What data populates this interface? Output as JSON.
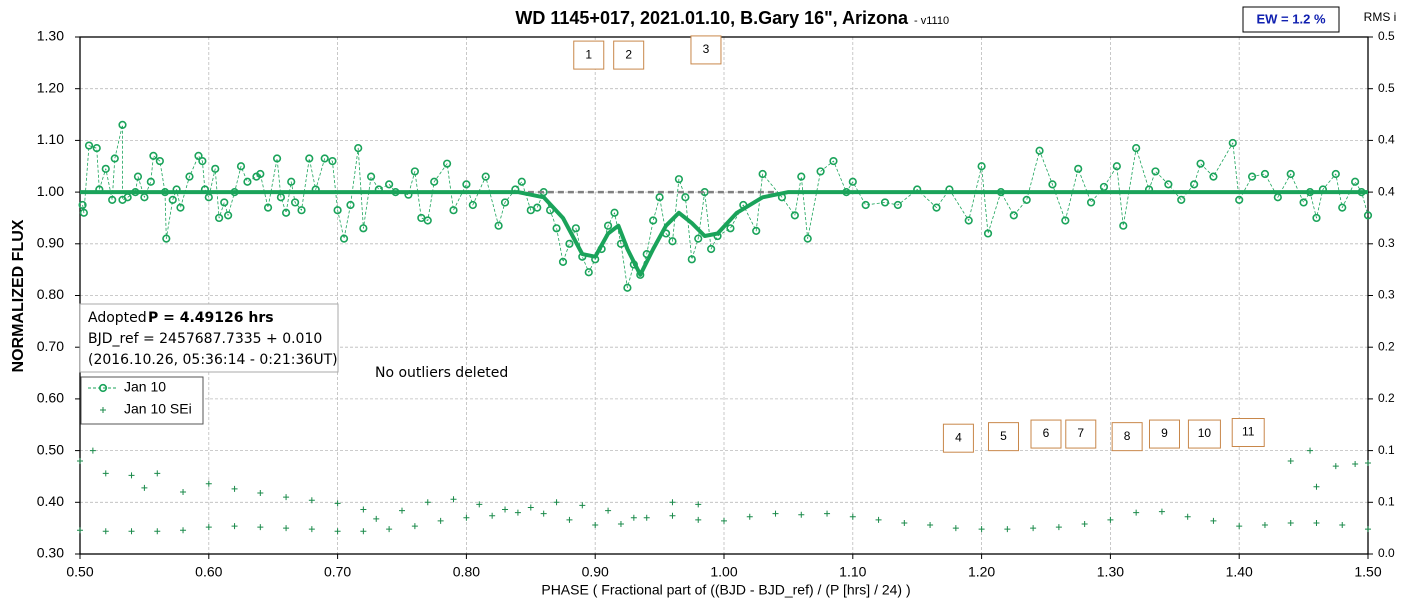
{
  "chart_data": {
    "type": "scatter",
    "title": "WD 1145+017, 2021.01.10, B.Gary 16\", Arizona",
    "subtitle": "- v1110",
    "x_label": "PHASE ( Fractional part of ((BJD - BJD_ref) / (P [hrs] / 24) )",
    "y_label": "NORMALIZED FLUX",
    "y2_label": "RMS i",
    "ew_label": "EW = 1.2 %",
    "note": "No outliers deleted",
    "info": {
      "adopted": "Adopted",
      "period": "P = 4.49126 hrs",
      "bjd": "BJD_ref = 2457687.7335 + 0.010",
      "date": "(2016.10.26, 05:36:14 - 0:21:36UT)"
    },
    "xlim": [
      0.5,
      1.5
    ],
    "xticks": [
      {
        "value": 0.5,
        "label": "0.50"
      },
      {
        "value": 0.6,
        "label": "0.60"
      },
      {
        "value": 0.7,
        "label": "0.70"
      },
      {
        "value": 0.8,
        "label": "0.80"
      },
      {
        "value": 0.9,
        "label": "0.90"
      },
      {
        "value": 1.0,
        "label": "1.00"
      },
      {
        "value": 1.1,
        "label": "1.10"
      },
      {
        "value": 1.2,
        "label": "1.20"
      },
      {
        "value": 1.3,
        "label": "1.30"
      },
      {
        "value": 1.4,
        "label": "1.40"
      },
      {
        "value": 1.5,
        "label": "1.50"
      }
    ],
    "ylim": [
      0.3,
      1.3
    ],
    "yticks": [
      {
        "value": 0.3,
        "label": "0.30"
      },
      {
        "value": 0.4,
        "label": "0.40"
      },
      {
        "value": 0.5,
        "label": "0.50"
      },
      {
        "value": 0.6,
        "label": "0.60"
      },
      {
        "value": 0.7,
        "label": "0.70"
      },
      {
        "value": 0.8,
        "label": "0.80"
      },
      {
        "value": 0.9,
        "label": "0.90"
      },
      {
        "value": 1.0,
        "label": "1.00"
      },
      {
        "value": 1.1,
        "label": "1.10"
      },
      {
        "value": 1.2,
        "label": "1.20"
      },
      {
        "value": 1.3,
        "label": "1.30"
      }
    ],
    "y2lim": [
      0,
      0.5
    ],
    "y2ticks": [
      {
        "value": 0,
        "label": "0.0"
      },
      {
        "value": 0.05,
        "label": "0.1"
      },
      0.1,
      {
        "value": 0.15,
        "label": "0.2"
      },
      0.2,
      {
        "value": 0.25,
        "label": "0.3"
      },
      0.3,
      {
        "value": 0.35,
        "label": "0.4"
      },
      0.4,
      {
        "value": 0.45,
        "label": "0.5"
      },
      0.5
    ],
    "grid": true,
    "legend": "lower-left",
    "series": [
      {
        "name": "Jan 10",
        "color": "#1aa35a",
        "marker": "circle",
        "line": "thin-dashed",
        "x": [
          0.502,
          0.503,
          0.507,
          0.513,
          0.515,
          0.52,
          0.525,
          0.527,
          0.533,
          0.533,
          0.537,
          0.543,
          0.545,
          0.55,
          0.555,
          0.557,
          0.562,
          0.566,
          0.567,
          0.572,
          0.575,
          0.578,
          0.585,
          0.592,
          0.595,
          0.597,
          0.6,
          0.605,
          0.608,
          0.612,
          0.615,
          0.62,
          0.625,
          0.63,
          0.637,
          0.64,
          0.646,
          0.653,
          0.656,
          0.66,
          0.664,
          0.667,
          0.672,
          0.678,
          0.683,
          0.69,
          0.696,
          0.7,
          0.705,
          0.71,
          0.716,
          0.72,
          0.726,
          0.732,
          0.74,
          0.745,
          0.755,
          0.76,
          0.765,
          0.77,
          0.775,
          0.785,
          0.79,
          0.8,
          0.805,
          0.815,
          0.825,
          0.83,
          0.838,
          0.843,
          0.85,
          0.855,
          0.86,
          0.865,
          0.87,
          0.875,
          0.88,
          0.885,
          0.89,
          0.895,
          0.9,
          0.905,
          0.91,
          0.915,
          0.92,
          0.925,
          0.93,
          0.935,
          0.94,
          0.945,
          0.95,
          0.955,
          0.96,
          0.965,
          0.97,
          0.975,
          0.98,
          0.985,
          0.99,
          0.995,
          1.005,
          1.015,
          1.025,
          1.03,
          1.045,
          1.055,
          1.06,
          1.065,
          1.075,
          1.085,
          1.095,
          1.1,
          1.11,
          1.125,
          1.135,
          1.15,
          1.165,
          1.175,
          1.19,
          1.2,
          1.205,
          1.215,
          1.225,
          1.235,
          1.245,
          1.255,
          1.265,
          1.275,
          1.285,
          1.295,
          1.305,
          1.31,
          1.32,
          1.33,
          1.335,
          1.345,
          1.355,
          1.365,
          1.37,
          1.38,
          1.395,
          1.4,
          1.41,
          1.42,
          1.43,
          1.44,
          1.45,
          1.455,
          1.46,
          1.465,
          1.475,
          1.48,
          1.49,
          1.495,
          1.5
        ],
        "values": [
          0.975,
          0.96,
          1.09,
          1.085,
          1.005,
          1.045,
          0.985,
          1.065,
          1.13,
          0.985,
          0.99,
          1.0,
          1.03,
          0.99,
          1.02,
          1.07,
          1.06,
          1.0,
          0.91,
          0.985,
          1.005,
          0.97,
          1.03,
          1.07,
          1.06,
          1.005,
          0.99,
          1.045,
          0.95,
          0.98,
          0.955,
          1.0,
          1.05,
          1.02,
          1.03,
          1.035,
          0.97,
          1.065,
          0.99,
          0.96,
          1.02,
          0.98,
          0.965,
          1.065,
          1.005,
          1.065,
          1.06,
          0.965,
          0.91,
          0.975,
          1.085,
          0.93,
          1.03,
          1.005,
          1.015,
          1.0,
          0.995,
          1.04,
          0.95,
          0.945,
          1.02,
          1.055,
          0.965,
          1.015,
          0.975,
          1.03,
          0.935,
          0.98,
          1.005,
          1.02,
          0.965,
          0.97,
          1.0,
          0.965,
          0.93,
          0.865,
          0.9,
          0.93,
          0.875,
          0.845,
          0.87,
          0.89,
          0.935,
          0.96,
          0.9,
          0.815,
          0.86,
          0.84,
          0.88,
          0.945,
          0.99,
          0.92,
          0.905,
          1.025,
          0.99,
          0.87,
          0.91,
          1.0,
          0.89,
          0.915,
          0.93,
          0.975,
          0.925,
          1.035,
          0.99,
          0.955,
          1.03,
          0.91,
          1.04,
          1.06,
          1.0,
          1.02,
          0.975,
          0.98,
          0.975,
          1.005,
          0.97,
          1.005,
          0.945,
          1.05,
          0.92,
          1.0,
          0.955,
          0.985,
          1.08,
          1.015,
          0.945,
          1.045,
          0.98,
          1.01,
          1.05,
          0.935,
          1.085,
          1.005,
          1.04,
          1.015,
          0.985,
          1.015,
          1.055,
          1.03,
          1.095,
          0.985,
          1.03,
          1.035,
          0.99,
          1.035,
          0.98,
          1.0,
          0.95,
          1.005,
          1.035,
          0.97,
          1.02,
          1.0,
          0.955
        ]
      },
      {
        "name": "Jan 10 SEi",
        "color": "#1a8a4a",
        "marker": "plus",
        "line": "none",
        "axis": "y2",
        "x": [
          0.5,
          0.52,
          0.54,
          0.56,
          0.58,
          0.6,
          0.62,
          0.64,
          0.66,
          0.68,
          0.7,
          0.72,
          0.74,
          0.76,
          0.78,
          0.8,
          0.82,
          0.84,
          0.86,
          0.88,
          0.9,
          0.92,
          0.94,
          0.96,
          0.98,
          1.0,
          1.02,
          1.04,
          1.06,
          1.08,
          1.1,
          1.12,
          1.14,
          1.16,
          1.18,
          1.2,
          1.22,
          1.24,
          1.26,
          1.28,
          1.3,
          1.32,
          1.34,
          1.36,
          1.38,
          1.4,
          1.42,
          1.44,
          1.46,
          1.48,
          1.5,
          0.5,
          0.51,
          0.52,
          0.54,
          0.55,
          0.56,
          0.58,
          0.6,
          0.62,
          0.64,
          0.66,
          0.68,
          0.7,
          0.72,
          0.73,
          0.75,
          0.77,
          0.79,
          0.81,
          0.83,
          0.85,
          0.87,
          0.89,
          0.91,
          0.93,
          0.96,
          0.98,
          1.44,
          1.455,
          1.46,
          1.475,
          1.49,
          1.5
        ],
        "values": [
          0.023,
          0.022,
          0.022,
          0.022,
          0.023,
          0.026,
          0.027,
          0.026,
          0.025,
          0.024,
          0.022,
          0.022,
          0.024,
          0.027,
          0.032,
          0.035,
          0.037,
          0.04,
          0.039,
          0.033,
          0.028,
          0.029,
          0.035,
          0.037,
          0.033,
          0.032,
          0.036,
          0.039,
          0.038,
          0.039,
          0.036,
          0.033,
          0.03,
          0.028,
          0.025,
          0.024,
          0.024,
          0.025,
          0.026,
          0.029,
          0.033,
          0.04,
          0.041,
          0.036,
          0.032,
          0.027,
          0.028,
          0.03,
          0.03,
          0.028,
          0.024,
          0.09,
          0.1,
          0.078,
          0.076,
          0.064,
          0.078,
          0.06,
          0.068,
          0.063,
          0.059,
          0.055,
          0.052,
          0.049,
          0.043,
          0.034,
          0.042,
          0.05,
          0.053,
          0.048,
          0.043,
          0.045,
          0.05,
          0.047,
          0.042,
          0.035,
          0.05,
          0.048,
          0.09,
          0.1,
          0.065,
          0.085,
          0.087,
          0.088
        ]
      },
      {
        "color": "#1aa35a",
        "marker": "none",
        "line": "thick",
        "x": [
          0.5,
          0.84,
          0.86,
          0.875,
          0.89,
          0.9,
          0.91,
          0.918,
          0.925,
          0.935,
          0.945,
          0.955,
          0.965,
          0.975,
          0.985,
          0.995,
          1.01,
          1.03,
          1.05,
          1.5
        ],
        "values": [
          1.0,
          1.0,
          0.99,
          0.95,
          0.88,
          0.875,
          0.92,
          0.935,
          0.89,
          0.84,
          0.89,
          0.935,
          0.96,
          0.94,
          0.915,
          0.92,
          0.96,
          0.99,
          1.0,
          1.0
        ]
      },
      {
        "color": "#808080",
        "marker": "none",
        "line": "thick-dashed",
        "x": [
          0.84,
          1.04
        ],
        "values": [
          1.0,
          1.0
        ]
      }
    ],
    "annotations": [
      {
        "text": "1",
        "x": 0.895,
        "y": 1.265
      },
      {
        "text": "2",
        "x": 0.926,
        "y": 1.265
      },
      {
        "text": "3",
        "x": 0.986,
        "y": 1.275
      },
      {
        "text": "4",
        "x": 1.182,
        "y": 0.524
      },
      {
        "text": "5",
        "x": 1.217,
        "y": 0.527
      },
      {
        "text": "6",
        "x": 1.25,
        "y": 0.532
      },
      {
        "text": "7",
        "x": 1.277,
        "y": 0.532
      },
      {
        "text": "8",
        "x": 1.313,
        "y": 0.527
      },
      {
        "text": "9",
        "x": 1.342,
        "y": 0.532
      },
      {
        "text": "10",
        "x": 1.373,
        "y": 0.532
      },
      {
        "text": "11",
        "x": 1.407,
        "y": 0.535
      }
    ]
  }
}
